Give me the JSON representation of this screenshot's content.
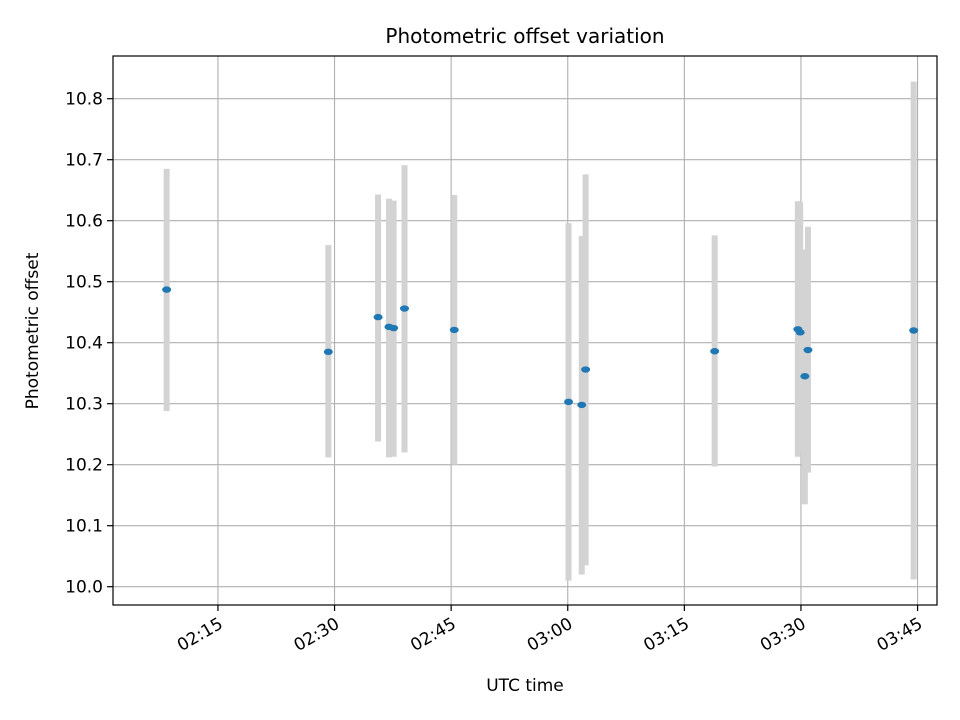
{
  "chart_data": {
    "type": "scatter",
    "title": "Photometric offset variation",
    "xlabel": "UTC time",
    "ylabel": "Photometric offset",
    "x_ticks": [
      "02:15",
      "02:30",
      "02:45",
      "03:00",
      "03:15",
      "03:30",
      "03:45"
    ],
    "x_tick_minutes": [
      135,
      150,
      165,
      180,
      195,
      210,
      225
    ],
    "xlim_minutes": [
      121.5,
      227.5
    ],
    "ylim": [
      9.97,
      10.87
    ],
    "y_ticks": [
      10.0,
      10.1,
      10.2,
      10.3,
      10.4,
      10.5,
      10.6,
      10.7,
      10.8
    ],
    "grid": true,
    "colors": {
      "point": "#1f77b4",
      "errorbar": "#d3d3d3"
    },
    "points": [
      {
        "minute": 128.4,
        "y": 10.487,
        "low": 10.288,
        "high": 10.685
      },
      {
        "minute": 149.2,
        "y": 10.385,
        "low": 10.212,
        "high": 10.56
      },
      {
        "minute": 155.6,
        "y": 10.442,
        "low": 10.238,
        "high": 10.643
      },
      {
        "minute": 157.0,
        "y": 10.426,
        "low": 10.212,
        "high": 10.636
      },
      {
        "minute": 157.6,
        "y": 10.424,
        "low": 10.213,
        "high": 10.633
      },
      {
        "minute": 159.0,
        "y": 10.456,
        "low": 10.22,
        "high": 10.691
      },
      {
        "minute": 165.4,
        "y": 10.421,
        "low": 10.2,
        "high": 10.642
      },
      {
        "minute": 180.1,
        "y": 10.303,
        "low": 10.01,
        "high": 10.596
      },
      {
        "minute": 181.8,
        "y": 10.298,
        "low": 10.02,
        "high": 10.575
      },
      {
        "minute": 182.3,
        "y": 10.356,
        "low": 10.035,
        "high": 10.676
      },
      {
        "minute": 198.9,
        "y": 10.386,
        "low": 10.197,
        "high": 10.576
      },
      {
        "minute": 209.6,
        "y": 10.422,
        "low": 10.213,
        "high": 10.632
      },
      {
        "minute": 209.9,
        "y": 10.417,
        "low": 10.22,
        "high": 10.63
      },
      {
        "minute": 210.5,
        "y": 10.345,
        "low": 10.135,
        "high": 10.553
      },
      {
        "minute": 210.9,
        "y": 10.388,
        "low": 10.187,
        "high": 10.59
      },
      {
        "minute": 224.5,
        "y": 10.42,
        "low": 10.012,
        "high": 10.828
      }
    ]
  }
}
